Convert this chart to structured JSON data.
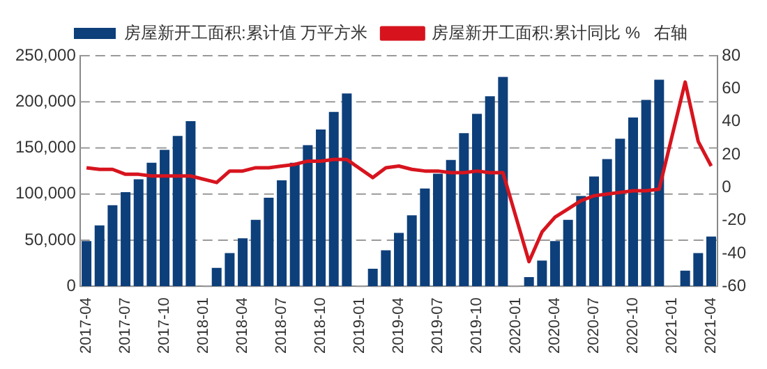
{
  "chart_data": {
    "type": "bar",
    "categories": [
      "2017-04",
      null,
      null,
      "2017-07",
      null,
      null,
      "2017-10",
      null,
      null,
      "2018-01",
      null,
      null,
      "2018-04",
      null,
      null,
      "2018-07",
      null,
      null,
      "2018-10",
      null,
      null,
      "2019-01",
      null,
      null,
      "2019-04",
      null,
      null,
      "2019-07",
      null,
      null,
      "2019-10",
      null,
      null,
      "2020-01",
      null,
      null,
      "2020-04",
      null,
      null,
      "2020-07",
      null,
      null,
      "2020-10",
      null,
      null,
      "2021-01",
      null,
      null,
      "2021-04"
    ],
    "series": [
      {
        "name": "房屋新开工面积:累计值 万平方米",
        "color": "#0d3f7a",
        "values": [
          49000,
          66000,
          88000,
          102000,
          116000,
          134000,
          148000,
          163000,
          179000,
          null,
          20000,
          36000,
          52000,
          72000,
          96000,
          115000,
          134000,
          153000,
          170000,
          189000,
          209000,
          null,
          19000,
          39000,
          58000,
          77000,
          106000,
          122000,
          137000,
          166000,
          187000,
          206000,
          227000,
          null,
          10000,
          28000,
          49000,
          72000,
          98000,
          119000,
          138000,
          160000,
          183000,
          202000,
          224000,
          null,
          17000,
          36000,
          54000
        ]
      },
      {
        "name": "房屋新开工面积:累计同比 %   右轴",
        "type": "line",
        "axis": "y2",
        "color": "#d7141e",
        "values": [
          12,
          11,
          11,
          8,
          8,
          7,
          7,
          7,
          7,
          null,
          3,
          10,
          10,
          12,
          12,
          13,
          14,
          16,
          16,
          17,
          17,
          null,
          6,
          12,
          13,
          11,
          10,
          10,
          9,
          9,
          10,
          9,
          9,
          null,
          -45,
          -27,
          -18,
          -13,
          -8,
          -5,
          -4,
          -3,
          -2,
          -2,
          -1,
          null,
          64,
          28,
          13
        ]
      }
    ],
    "ylim": [
      0,
      250000
    ],
    "yticks": [
      {
        "value": 0,
        "label": "0"
      },
      {
        "value": 50000,
        "label": "50,000"
      },
      {
        "value": 100000,
        "label": "100,000"
      },
      {
        "value": 150000,
        "label": "150,000"
      },
      {
        "value": 200000,
        "label": "200,000"
      },
      {
        "value": 250000,
        "label": "250,000"
      }
    ],
    "y2lim": [
      -60,
      80
    ],
    "y2ticks": [
      -60,
      -40,
      -20,
      0,
      20,
      40,
      60,
      80
    ],
    "grid": "y",
    "legend": "top",
    "marker": "none",
    "line_style": "solid"
  }
}
